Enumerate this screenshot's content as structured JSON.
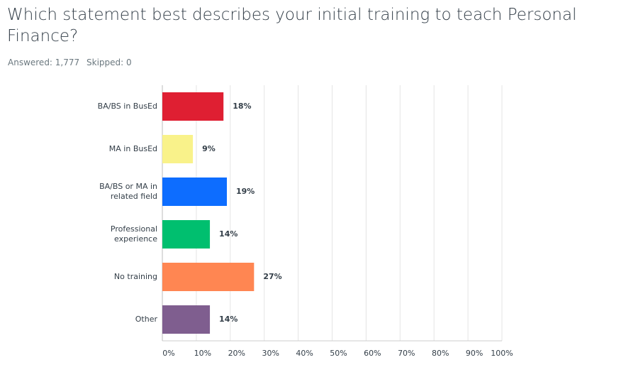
{
  "chart_data": {
    "type": "hbar",
    "title": "Which statement best describes your initial training to teach Personal Finance?",
    "annotations": [
      "Answered: 1,777",
      "Skipped: 0"
    ],
    "categories": [
      "BA/BS in BusEd",
      "MA in BusEd",
      "BA/BS or MA in related field",
      "Professional experience",
      "No training",
      "Other"
    ],
    "values": [
      18,
      9,
      19,
      14,
      27,
      14
    ],
    "value_labels": [
      "18%",
      "9%",
      "19%",
      "14%",
      "27%",
      "14%"
    ],
    "colors": [
      "#df1f32",
      "#f9f28a",
      "#0d6dff",
      "#00bf6f",
      "#ff8652",
      "#7f5e8f"
    ],
    "xlim": [
      0,
      100
    ],
    "xticks": [
      {
        "value": 0,
        "label": "0%"
      },
      {
        "value": 10,
        "label": "10%"
      },
      {
        "value": 20,
        "label": "20%"
      },
      {
        "value": 30,
        "label": "30%"
      },
      {
        "value": 40,
        "label": "40%"
      },
      {
        "value": 50,
        "label": "50%"
      },
      {
        "value": 60,
        "label": "60%"
      },
      {
        "value": 70,
        "label": "70%"
      },
      {
        "value": 80,
        "label": "80%"
      },
      {
        "value": 90,
        "label": "90%"
      },
      {
        "value": 100,
        "label": "100%"
      }
    ],
    "grid": true
  }
}
